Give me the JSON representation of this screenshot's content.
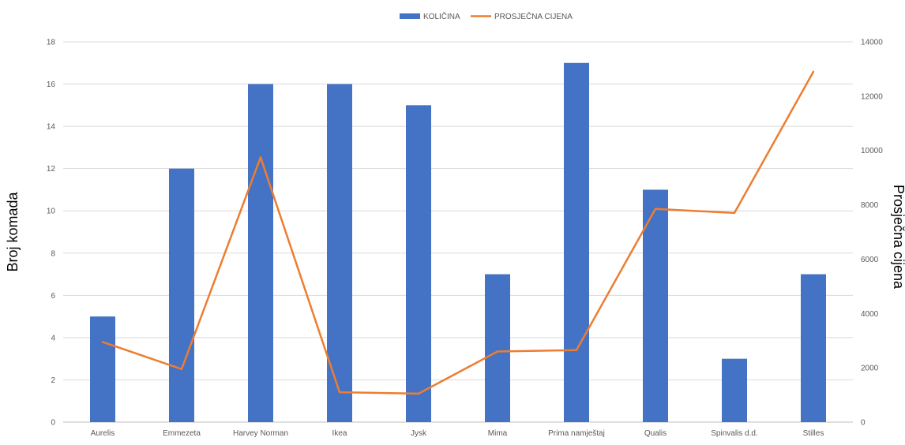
{
  "chart_data": {
    "type": "bar",
    "title": "",
    "categories": [
      "Aurelis",
      "Emmezeta",
      "Harvey Norman",
      "Ikea",
      "Jysk",
      "Mima",
      "Prima namještaj",
      "Qualis",
      "Spinvalis d.d.",
      "Stilles"
    ],
    "series": [
      {
        "name": "KOLIČINA",
        "type": "bar",
        "axis": "left",
        "color": "#4472C4",
        "values": [
          5,
          12,
          16,
          16,
          15,
          7,
          17,
          11,
          3,
          7
        ]
      },
      {
        "name": "PROSJEČNA CIJENA",
        "type": "line",
        "axis": "right",
        "color": "#ED7D31",
        "values": [
          2950,
          1950,
          9750,
          1100,
          1050,
          2600,
          2650,
          7850,
          7700,
          12900
        ]
      }
    ],
    "ylabel": "Broj komada",
    "ylabel_right": "Prosječna cijena",
    "xlabel": "",
    "ylim": [
      0,
      18
    ],
    "ylim_right": [
      0,
      14000
    ],
    "yticks": [
      "0",
      "2",
      "4",
      "6",
      "8",
      "10",
      "12",
      "14",
      "16",
      "18"
    ],
    "yticks_right": [
      "0",
      "2000",
      "4000",
      "6000",
      "8000",
      "10000",
      "12000",
      "14000"
    ],
    "grid": true,
    "legend_position": "top-center"
  }
}
